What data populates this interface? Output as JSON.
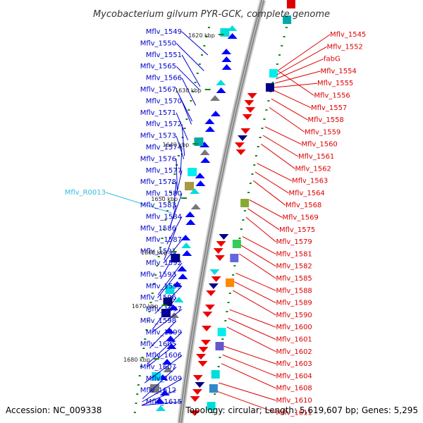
{
  "title": "Mycobacterium gilvum PYR-GCK, complete genome",
  "footer": {
    "accession": "Accession: NC_009338",
    "summary": "Topology: circular; Length: 5,619,607 bp; Genes: 5,295"
  },
  "colors": {
    "forward_label": "#0000cc",
    "reverse_label": "#dd0000",
    "rna_label": "#33bbdd",
    "backbone": "#888888",
    "tick": "#118811"
  },
  "coordinate_labels": [
    "1620 kbp",
    "1630 kbp",
    "1640 kbp",
    "1650 kbp",
    "1660 kbp",
    "1670 kbp",
    "1680 kbp"
  ],
  "forward_genes": [
    "Mflv_1549",
    "Mflv_1550",
    "Mflv_1551",
    "Mflv_1565",
    "Mflv_1566",
    "Mflv_1567",
    "Mflv_1570",
    "Mflv_1571",
    "Mflv_1572",
    "Mflv_1573",
    "Mflv_1574",
    "Mflv_1576",
    "Mflv_1577",
    "Mflv_1578",
    "Mflv_1580",
    "Mflv_1583",
    "Mflv_1584",
    "Mflv_1586",
    "Mflv_1587",
    "Mflv_1591",
    "Mflv_1592",
    "Mflv_1593",
    "Mflv_1595",
    "Mflv_1596",
    "Mflv_1597",
    "Mflv_1598",
    "Mflv_1599",
    "Mflv_1605",
    "Mflv_1606",
    "Mflv_1607",
    "Mflv_1609",
    "Mflv_1612",
    "Mflv_1615"
  ],
  "rna_genes": [
    "Mflv_R0013"
  ],
  "reverse_genes": [
    "Mflv_1545",
    "Mflv_1552",
    "fabG",
    "Mflv_1554",
    "Mflv_1555",
    "Mflv_1556",
    "Mflv_1557",
    "Mflv_1558",
    "Mflv_1559",
    "Mflv_1560",
    "Mflv_1561",
    "Mflv_1562",
    "Mflv_1563",
    "Mflv_1564",
    "Mflv_1568",
    "Mflv_1569",
    "Mflv_1575",
    "Mflv_1579",
    "Mflv_1581",
    "Mflv_1582",
    "Mflv_1585",
    "Mflv_1588",
    "Mflv_1589",
    "Mflv_1590",
    "Mflv_1600",
    "Mflv_1601",
    "Mflv_1602",
    "Mflv_1603",
    "Mflv_1604",
    "Mflv_1608",
    "Mflv_1610",
    "Mflv_1611"
  ]
}
